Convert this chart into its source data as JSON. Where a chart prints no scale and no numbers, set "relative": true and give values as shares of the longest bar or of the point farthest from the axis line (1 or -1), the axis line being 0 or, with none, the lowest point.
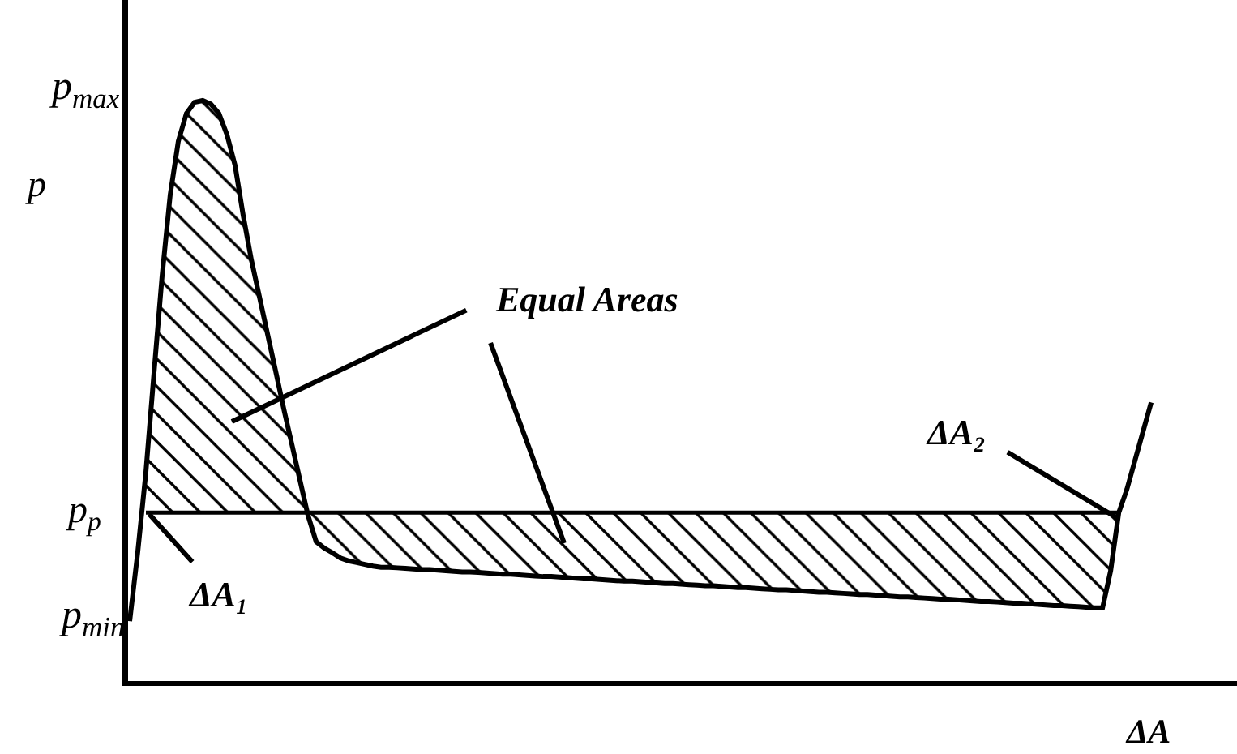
{
  "chart_data": {
    "type": "line",
    "relative": true,
    "xlabel": "ΔA",
    "ylabel": "p",
    "categories": [
      null,
      null,
      null,
      null,
      null,
      null,
      null,
      null,
      null,
      null,
      null,
      null,
      null,
      null,
      null,
      null,
      null,
      null,
      null,
      null,
      null,
      null,
      null,
      null,
      null,
      null,
      null,
      null,
      null,
      null,
      null,
      null,
      null,
      null,
      null,
      null,
      null,
      null,
      null,
      null,
      null,
      null,
      null,
      null,
      null,
      null,
      null,
      null,
      null,
      null,
      null,
      null,
      null,
      null,
      null,
      null,
      null,
      null,
      null,
      null,
      null,
      null,
      null,
      null,
      null,
      null,
      null,
      null,
      null,
      null,
      null,
      null,
      null,
      null,
      null,
      null,
      null,
      null,
      null,
      null,
      null,
      null,
      null,
      null,
      null,
      null,
      null,
      null,
      null,
      null,
      null,
      null,
      null,
      null,
      null,
      null,
      null,
      null,
      null,
      null,
      null,
      null,
      null,
      null,
      null,
      null,
      null,
      null,
      null,
      null,
      null,
      null,
      null,
      null,
      null,
      null,
      null,
      null,
      null,
      null,
      null,
      null,
      null,
      null,
      null,
      null,
      null
    ],
    "series": [
      {
        "color": "#000000",
        "values": [
          0.103,
          0.223,
          0.36,
          0.531,
          0.698,
          0.838,
          0.93,
          0.978,
          0.997,
          1.0,
          0.994,
          0.978,
          0.941,
          0.888,
          0.802,
          0.726,
          0.662,
          0.598,
          0.534,
          0.469,
          0.408,
          0.346,
          0.285,
          0.24,
          0.229,
          0.221,
          0.212,
          0.207,
          0.204,
          0.201,
          0.198,
          0.196,
          0.196,
          0.195,
          0.194,
          0.193,
          0.192,
          0.192,
          0.191,
          0.19,
          0.189,
          0.188,
          0.188,
          0.187,
          0.186,
          0.185,
          0.184,
          0.184,
          0.183,
          0.182,
          0.181,
          0.18,
          0.18,
          0.179,
          0.178,
          0.177,
          0.176,
          0.176,
          0.175,
          0.174,
          0.173,
          0.172,
          0.172,
          0.171,
          0.17,
          0.169,
          0.168,
          0.168,
          0.167,
          0.166,
          0.165,
          0.164,
          0.164,
          0.163,
          0.162,
          0.161,
          0.161,
          0.16,
          0.159,
          0.158,
          0.157,
          0.157,
          0.156,
          0.155,
          0.154,
          0.153,
          0.153,
          0.152,
          0.151,
          0.15,
          0.149,
          0.149,
          0.148,
          0.147,
          0.146,
          0.145,
          0.145,
          0.144,
          0.143,
          0.142,
          0.141,
          0.141,
          0.14,
          0.139,
          0.138,
          0.137,
          0.137,
          0.136,
          0.135,
          0.134,
          0.134,
          0.133,
          0.132,
          0.131,
          0.13,
          0.13,
          0.129,
          0.128,
          0.127,
          0.126,
          0.126,
          0.19,
          0.29,
          0.33,
          0.38,
          0.43,
          0.48
        ],
        "upper": [
          null,
          null,
          0.36,
          0.531,
          0.698,
          0.838,
          0.93,
          0.978,
          0.997,
          1.0,
          0.994,
          0.978,
          0.941,
          0.888,
          0.802,
          0.726,
          0.662,
          0.598,
          0.534,
          0.469,
          0.408,
          0.346,
          0.285,
          0.24,
          0.229,
          0.221,
          0.212,
          0.207,
          0.204,
          0.201,
          0.198,
          0.196,
          0.196,
          0.195,
          0.194,
          0.193,
          0.192,
          0.192,
          0.191,
          0.19,
          0.189,
          0.188,
          0.188,
          0.187,
          0.186,
          0.185,
          0.184,
          0.184,
          0.183,
          0.182,
          0.181,
          0.18,
          0.18,
          0.179,
          0.178,
          0.177,
          0.176,
          0.176,
          0.175,
          0.174,
          0.173,
          0.172,
          0.172,
          0.171,
          0.17,
          0.169,
          0.168,
          0.168,
          0.167,
          0.166,
          0.165,
          0.164,
          0.164,
          0.163,
          0.162,
          0.161,
          0.161,
          0.16,
          0.159,
          0.158,
          0.157,
          0.157,
          0.156,
          0.155,
          0.154,
          0.153,
          0.153,
          0.152,
          0.151,
          0.15,
          0.149,
          0.149,
          0.148,
          0.147,
          0.146,
          0.145,
          0.145,
          0.144,
          0.143,
          0.142,
          0.141,
          0.141,
          0.14,
          0.139,
          0.138,
          0.137,
          0.137,
          0.136,
          0.135,
          0.134,
          0.134,
          0.133,
          0.132,
          0.131,
          0.13,
          0.13,
          0.129,
          0.128,
          0.127,
          0.126,
          0.126,
          0.19,
          0.29,
          null,
          null,
          null,
          null
        ],
        "lower": [
          null,
          null,
          0.29,
          0.29,
          0.29,
          0.29,
          0.29,
          0.29,
          0.29,
          0.29,
          0.29,
          0.29,
          0.29,
          0.29,
          0.29,
          0.29,
          0.29,
          0.29,
          0.29,
          0.29,
          0.29,
          0.29,
          0.29,
          0.29,
          0.29,
          0.29,
          0.29,
          0.29,
          0.29,
          0.29,
          0.29,
          0.29,
          0.29,
          0.29,
          0.29,
          0.29,
          0.29,
          0.29,
          0.29,
          0.29,
          0.29,
          0.29,
          0.29,
          0.29,
          0.29,
          0.29,
          0.29,
          0.29,
          0.29,
          0.29,
          0.29,
          0.29,
          0.29,
          0.29,
          0.29,
          0.29,
          0.29,
          0.29,
          0.29,
          0.29,
          0.29,
          0.29,
          0.29,
          0.29,
          0.29,
          0.29,
          0.29,
          0.29,
          0.29,
          0.29,
          0.29,
          0.29,
          0.29,
          0.29,
          0.29,
          0.29,
          0.29,
          0.29,
          0.29,
          0.29,
          0.29,
          0.29,
          0.29,
          0.29,
          0.29,
          0.29,
          0.29,
          0.29,
          0.29,
          0.29,
          0.29,
          0.29,
          0.29,
          0.29,
          0.29,
          0.29,
          0.29,
          0.29,
          0.29,
          0.29,
          0.29,
          0.29,
          0.29,
          0.29,
          0.29,
          0.29,
          0.29,
          0.29,
          0.29,
          0.29,
          0.29,
          0.29,
          0.29,
          0.29,
          0.29,
          0.29,
          0.29,
          0.29,
          0.29,
          0.29,
          0.29,
          0.29,
          0.29,
          null,
          null,
          null,
          null
        ]
      }
    ],
    "ref_lines": [
      {
        "axis": "y",
        "value": 0.29,
        "label": "p$_{p}$"
      }
    ],
    "annotations": [
      "p$_{max}$",
      "p$_{min}$",
      "Equal Areas",
      "ΔA₁",
      "ΔA₂"
    ]
  }
}
